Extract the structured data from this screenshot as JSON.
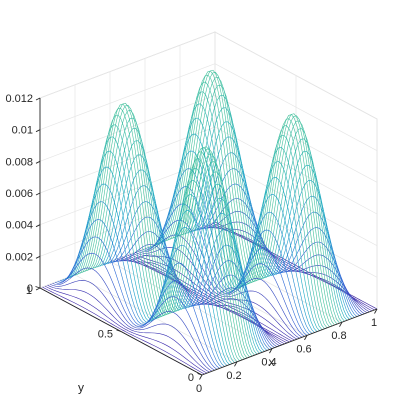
{
  "chart_data": {
    "type": "surface-mesh",
    "title": "",
    "function": "z = 0.012 * sin(2*pi*x)^2 * sin(2*pi*y)^2",
    "peak_value": 0.012,
    "xlabel": "x",
    "ylabel": "y",
    "zlabel": "",
    "xlim": [
      0,
      1
    ],
    "ylim": [
      0,
      1
    ],
    "zlim": [
      0,
      0.012
    ],
    "x_ticks": [
      "0",
      "0.2",
      "0.4",
      "0.6",
      "0.8",
      "1"
    ],
    "y_ticks": [
      "0",
      "0.5",
      "1"
    ],
    "z_ticks": [
      "0",
      "0.002",
      "0.004",
      "0.006",
      "0.008",
      "0.01",
      "0.012"
    ],
    "x_tick_values": [
      0,
      0.2,
      0.4,
      0.6,
      0.8,
      1
    ],
    "y_tick_values": [
      0,
      0.5,
      1
    ],
    "z_tick_values": [
      0,
      0.002,
      0.004,
      0.006,
      0.008,
      0.01,
      0.012
    ],
    "peaks": [
      {
        "x": 0.25,
        "y": 0.25,
        "z": 0.012
      },
      {
        "x": 0.75,
        "y": 0.25,
        "z": 0.012
      },
      {
        "x": 0.25,
        "y": 0.75,
        "z": 0.012
      },
      {
        "x": 0.75,
        "y": 0.75,
        "z": 0.012
      }
    ],
    "grid": true,
    "colormap": "parula",
    "colormap_stops": [
      "#3e26a8",
      "#2f6bd8",
      "#1ca9c8",
      "#48c49a",
      "#a9c84f",
      "#f4d13a",
      "#f9fb0e"
    ],
    "mesh_mode": "x-lines"
  }
}
